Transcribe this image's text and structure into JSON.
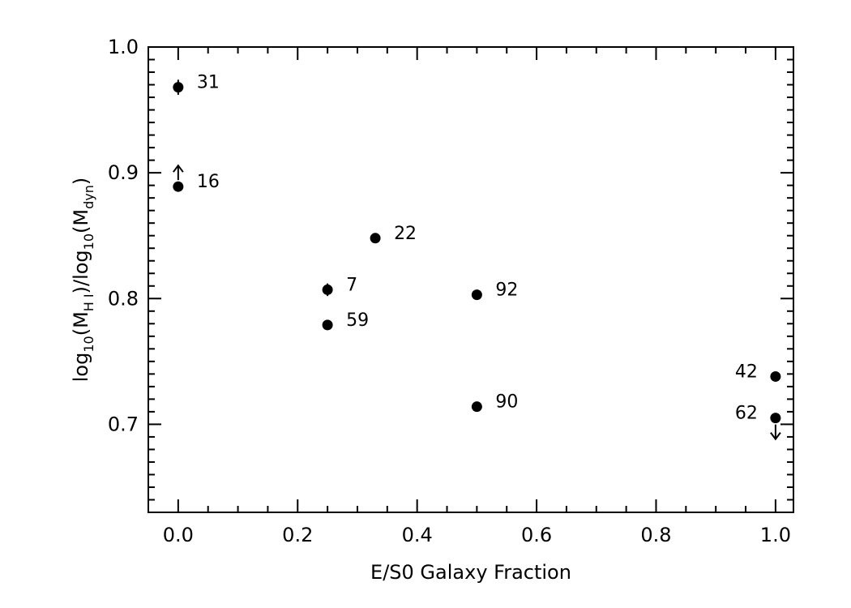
{
  "chart_data": {
    "type": "scatter",
    "title": "",
    "xlabel": "E/S0 Galaxy Fraction",
    "ylabel": {
      "text": "log10(MH I)/log10(Mdyn)",
      "parts": [
        "log",
        "10",
        "(M",
        "H I",
        ")/log",
        "10",
        "(M",
        "dyn",
        ")"
      ]
    },
    "xlim": [
      -0.05,
      1.03
    ],
    "ylim": [
      0.63,
      1.0
    ],
    "xticks": [
      0.0,
      0.2,
      0.4,
      0.6,
      0.8,
      1.0
    ],
    "xtick_labels": [
      "0.0",
      "0.2",
      "0.4",
      "0.6",
      "0.8",
      "1.0"
    ],
    "yticks": [
      0.7,
      0.8,
      0.9,
      1.0
    ],
    "ytick_labels": [
      "0.7",
      "0.8",
      "0.9",
      "1.0"
    ],
    "x_minor_step": 0.05,
    "y_minor_step": 0.01,
    "grid": false,
    "legend": "none",
    "points": [
      {
        "x": 0.0,
        "y": 0.968,
        "label": "31",
        "label_side": "right",
        "yerr": 0.006
      },
      {
        "x": 0.0,
        "y": 0.889,
        "label": "16",
        "label_side": "right",
        "limit": "lower"
      },
      {
        "x": 0.33,
        "y": 0.848,
        "label": "22",
        "label_side": "right"
      },
      {
        "x": 0.25,
        "y": 0.807,
        "label": "7",
        "label_side": "right",
        "yerr": 0.005
      },
      {
        "x": 0.25,
        "y": 0.779,
        "label": "59",
        "label_side": "right"
      },
      {
        "x": 0.5,
        "y": 0.803,
        "label": "92",
        "label_side": "right"
      },
      {
        "x": 0.5,
        "y": 0.714,
        "label": "90",
        "label_side": "right"
      },
      {
        "x": 1.0,
        "y": 0.738,
        "label": "42",
        "label_side": "left"
      },
      {
        "x": 1.0,
        "y": 0.705,
        "label": "62",
        "label_side": "left",
        "limit": "upper"
      }
    ]
  }
}
